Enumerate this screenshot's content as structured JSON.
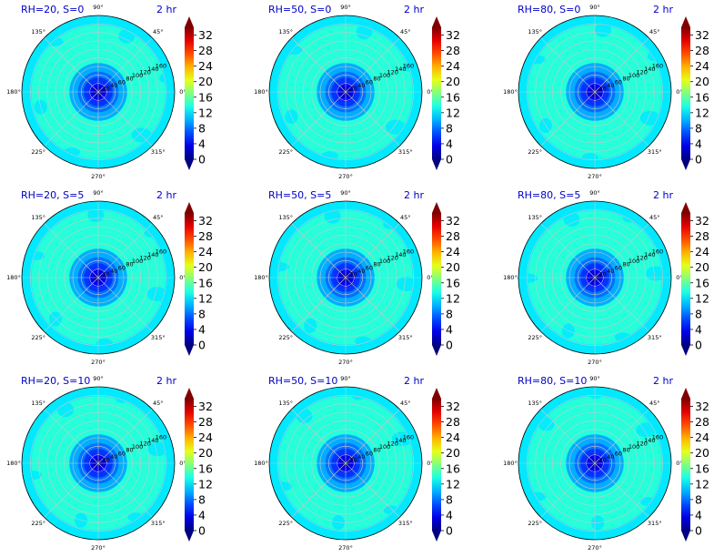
{
  "chart_data": [
    {
      "type": "heatmap",
      "projection": "polar",
      "title_left": "RH=20, S=0",
      "title_right": "2 hr"
    },
    {
      "type": "heatmap",
      "projection": "polar",
      "title_left": "RH=50, S=0",
      "title_right": "2 hr"
    },
    {
      "type": "heatmap",
      "projection": "polar",
      "title_left": "RH=80, S=0",
      "title_right": "2 hr"
    },
    {
      "type": "heatmap",
      "projection": "polar",
      "title_left": "RH=20, S=5",
      "title_right": "2 hr"
    },
    {
      "type": "heatmap",
      "projection": "polar",
      "title_left": "RH=50, S=5",
      "title_right": "2 hr"
    },
    {
      "type": "heatmap",
      "projection": "polar",
      "title_left": "RH=80, S=5",
      "title_right": "2 hr"
    },
    {
      "type": "heatmap",
      "projection": "polar",
      "title_left": "RH=20, S=10",
      "title_right": "2 hr"
    },
    {
      "type": "heatmap",
      "projection": "polar",
      "title_left": "RH=50, S=10",
      "title_right": "2 hr"
    },
    {
      "type": "heatmap",
      "projection": "polar",
      "title_left": "RH=80, S=10",
      "title_right": "2 hr"
    }
  ],
  "shared": {
    "angle_ticks": [
      "90°",
      "45°",
      "0°",
      "315°",
      "270°",
      "225°",
      "180°",
      "135°"
    ],
    "angle_values": [
      90,
      45,
      0,
      315,
      270,
      225,
      180,
      135
    ],
    "radial_ticks": [
      "20",
      "40",
      "60",
      "80",
      "100",
      "120",
      "140",
      "160"
    ],
    "radial_values": [
      20,
      40,
      60,
      80,
      100,
      120,
      140,
      160
    ],
    "r_max": 180,
    "radial_label_angle_deg": 22.5,
    "colorbar_ticks": [
      "0",
      "4",
      "8",
      "12",
      "16",
      "20",
      "24",
      "28",
      "32"
    ],
    "colorbar_values": [
      0,
      4,
      8,
      12,
      16,
      20,
      24,
      28,
      32
    ],
    "colorbar_range": [
      0,
      34
    ],
    "colorbar_extend": "both",
    "colormap": "jet",
    "field_levels": [
      {
        "r_max": 4,
        "value": 0.5
      },
      {
        "r_max": 12,
        "value": 2
      },
      {
        "r_max": 22,
        "value": 4
      },
      {
        "r_max": 34,
        "value": 6
      },
      {
        "r_max": 48,
        "value": 8
      },
      {
        "r_max": 68,
        "value": 10
      },
      {
        "r_max": 158,
        "value": 14
      },
      {
        "r_max": 180,
        "value": 12
      }
    ],
    "grid": true
  }
}
